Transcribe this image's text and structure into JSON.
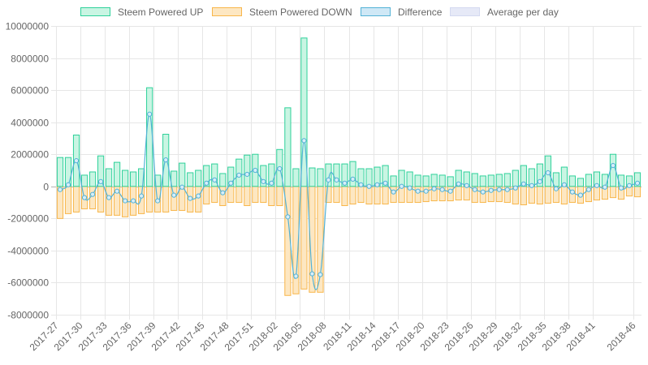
{
  "legend": [
    {
      "label": "Steem Powered UP",
      "fill": "#c9f5e3",
      "stroke": "#2ed19a"
    },
    {
      "label": "Steem Powered DOWN",
      "fill": "#fde7c2",
      "stroke": "#f8b64a"
    },
    {
      "label": "Difference",
      "fill": "#cfe8f6",
      "stroke": "#53b2d6"
    },
    {
      "label": "Average per day",
      "fill": "#e6e9f7",
      "stroke": "#d4d9f0"
    }
  ],
  "colors": {
    "up_fill": "#c9f5e3",
    "up_stroke": "#2ed19a",
    "down_fill": "#fde7c2",
    "down_stroke": "#f8b64a",
    "diff_line": "#53b2d6",
    "grid": "#e6e6e6",
    "zero_line": "#b4b4b4",
    "tick_text": "#666666"
  },
  "chart_data": {
    "type": "bar",
    "title": "",
    "xlabel": "",
    "ylabel": "",
    "ylim": [
      -8000000,
      10000000
    ],
    "y_ticks": [
      10000000,
      8000000,
      6000000,
      4000000,
      2000000,
      0,
      -2000000,
      -4000000,
      -6000000,
      -8000000
    ],
    "y_tick_labels": [
      "10000000",
      "8000000",
      "6000000",
      "4000000",
      "2000000",
      "0",
      "-2000000",
      "-4000000",
      "-6000000",
      "-8000000"
    ],
    "x_tick_labels": [
      "2017-27",
      "2017-30",
      "2017-33",
      "2017-36",
      "2017-39",
      "2017-42",
      "2017-45",
      "2017-48",
      "2017-51",
      "2018-02",
      "2018-05",
      "2018-08",
      "2018-11",
      "2018-14",
      "2018-17",
      "2018-20",
      "2018-23",
      "2018-26",
      "2018-29",
      "2018-32",
      "2018-35",
      "2018-38",
      "2018-41",
      "2018-46"
    ],
    "x_tick_positions": [
      0,
      3,
      6,
      9,
      12,
      15,
      18,
      21,
      24,
      27,
      30,
      33,
      36,
      39,
      42,
      45,
      48,
      51,
      54,
      57,
      60,
      63,
      66,
      71
    ],
    "grid": true,
    "legend_position": "top",
    "series": [
      {
        "name": "Steem Powered UP",
        "type": "bar",
        "values": [
          1800000,
          1800000,
          3200000,
          700000,
          900000,
          1900000,
          1100000,
          1500000,
          1000000,
          900000,
          1100000,
          6150000,
          700000,
          3250000,
          950000,
          1450000,
          850000,
          1000000,
          1300000,
          1400000,
          800000,
          1200000,
          1700000,
          1950000,
          2000000,
          1300000,
          1400000,
          2300000,
          4900000,
          1100000,
          9250000,
          1150000,
          1100000,
          1400000,
          1400000,
          1400000,
          1550000,
          1100000,
          1100000,
          1200000,
          1300000,
          650000,
          1000000,
          900000,
          700000,
          650000,
          750000,
          700000,
          600000,
          1000000,
          900000,
          800000,
          650000,
          700000,
          750000,
          800000,
          1000000,
          1300000,
          1100000,
          1400000,
          1900000,
          850000,
          1200000,
          650000,
          500000,
          750000,
          900000,
          750000,
          2000000,
          700000,
          650000,
          850000
        ]
      },
      {
        "name": "Steem Powered DOWN",
        "type": "bar",
        "values": [
          -2000000,
          -1700000,
          -1600000,
          -1400000,
          -1400000,
          -1600000,
          -1800000,
          -1800000,
          -1900000,
          -1800000,
          -1700000,
          -1600000,
          -1600000,
          -1600000,
          -1500000,
          -1500000,
          -1600000,
          -1600000,
          -1100000,
          -1000000,
          -1200000,
          -1000000,
          -1000000,
          -1200000,
          -1000000,
          -1000000,
          -1200000,
          -1200000,
          -6800000,
          -6700000,
          -6400000,
          -6600000,
          -6600000,
          -1000000,
          -1000000,
          -1200000,
          -1100000,
          -1000000,
          -1100000,
          -1100000,
          -1100000,
          -1000000,
          -1000000,
          -1000000,
          -1000000,
          -950000,
          -900000,
          -900000,
          -900000,
          -850000,
          -850000,
          -1000000,
          -1000000,
          -950000,
          -950000,
          -1000000,
          -1100000,
          -1150000,
          -1050000,
          -1100000,
          -1050000,
          -1000000,
          -1100000,
          -1000000,
          -1050000,
          -950000,
          -850000,
          -800000,
          -700000,
          -800000,
          -600000,
          -650000
        ]
      },
      {
        "name": "Difference",
        "type": "line",
        "values": [
          -200000,
          100000,
          1600000,
          -700000,
          -500000,
          300000,
          -700000,
          -300000,
          -900000,
          -900000,
          -600000,
          4500000,
          -900000,
          1650000,
          -550000,
          -50000,
          -750000,
          -600000,
          200000,
          400000,
          -400000,
          200000,
          700000,
          750000,
          1000000,
          300000,
          200000,
          1100000,
          -1900000,
          -5600000,
          2850000,
          -5450000,
          -5500000,
          400000,
          400000,
          200000,
          450000,
          100000,
          0,
          100000,
          200000,
          -350000,
          0,
          -100000,
          -300000,
          -300000,
          -150000,
          -200000,
          -300000,
          150000,
          50000,
          -200000,
          -350000,
          -250000,
          -200000,
          -200000,
          -100000,
          150000,
          50000,
          300000,
          850000,
          -150000,
          100000,
          -350000,
          -550000,
          -200000,
          50000,
          -50000,
          1300000,
          -100000,
          50000,
          200000
        ]
      },
      {
        "name": "Average per day",
        "type": "line",
        "values": []
      }
    ]
  }
}
